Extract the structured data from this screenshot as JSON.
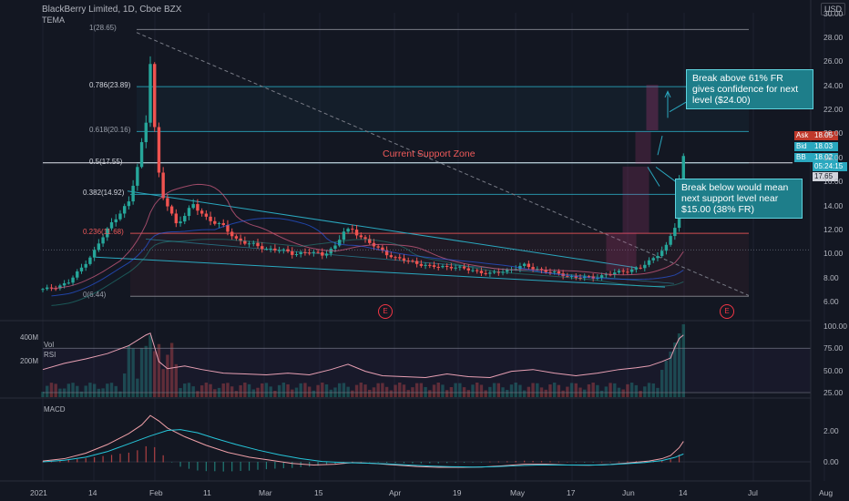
{
  "header": {
    "title": "BlackBerry Limited, 1D, Cboe BZX",
    "indicator": "TEMA",
    "currency": "USD"
  },
  "colors": {
    "background": "#131722",
    "up": "#26a69a",
    "down": "#ef5350",
    "fib_blue": "#2aa8bf",
    "fib_red": "#f05a5a",
    "callout_bg": "#1e7e8a"
  },
  "annotations": {
    "callout_up": "Break above 61% FR gives confidence for next level ($24.00)",
    "callout_down": "Break below would mean next support level near $15.00 (38% FR)",
    "support_zone": "Current Support Zone",
    "earnings_marker": "E"
  },
  "quotes": {
    "ask_label": "Ask",
    "ask": "18.05",
    "bid_label": "Bid",
    "bid": "18.03",
    "bb_label": "BB",
    "last": "18.02",
    "countdown": "05:24:15",
    "other": "17.65"
  },
  "panes": {
    "vol_label": "Vol",
    "rsi_label": "RSI",
    "macd_label": "MACD"
  },
  "chart_data": {
    "type": "candlestick",
    "title": "BlackBerry Limited, 1D, Cboe BZX",
    "x_ticks": [
      "2021",
      "14",
      "Feb",
      "11",
      "Mar",
      "15",
      "Apr",
      "19",
      "May",
      "17",
      "Jun",
      "14",
      "Jul",
      "Aug"
    ],
    "price_axis": {
      "ticks": [
        "30.00",
        "28.00",
        "26.00",
        "24.00",
        "22.00",
        "20.00",
        "18.00",
        "16.00",
        "14.00",
        "12.00",
        "10.00",
        "8.00",
        "6.00"
      ],
      "range": [
        5,
        30
      ]
    },
    "fib_levels": [
      {
        "label": "1(28.65)",
        "value": 28.65
      },
      {
        "label": "0.786(23.89)",
        "value": 23.89
      },
      {
        "label": "0.618(20.16)",
        "value": 20.16
      },
      {
        "label": "0.5(17.55)",
        "value": 17.55
      },
      {
        "label": "0.382(14.92)",
        "value": 14.92
      },
      {
        "label": "0.236(11.68)",
        "value": 11.68
      },
      {
        "label": "0(6.44)",
        "value": 6.44
      }
    ],
    "price_series": [
      [
        0,
        7.0
      ],
      [
        3,
        7.2
      ],
      [
        6,
        7.6
      ],
      [
        9,
        8.8
      ],
      [
        12,
        10.2
      ],
      [
        15,
        12.0
      ],
      [
        18,
        13.5
      ],
      [
        20,
        14.2
      ],
      [
        22,
        17.2
      ],
      [
        24,
        21.0
      ],
      [
        25,
        26.2
      ],
      [
        26,
        20.5
      ],
      [
        27,
        16.5
      ],
      [
        28,
        14.6
      ],
      [
        29,
        14.0
      ],
      [
        31,
        12.5
      ],
      [
        33,
        13.2
      ],
      [
        35,
        14.0
      ],
      [
        38,
        13.0
      ],
      [
        42,
        12.2
      ],
      [
        45,
        11.2
      ],
      [
        48,
        10.8
      ],
      [
        52,
        10.4
      ],
      [
        55,
        10.3
      ],
      [
        58,
        10.0
      ],
      [
        62,
        10.1
      ],
      [
        65,
        9.9
      ],
      [
        68,
        10.6
      ],
      [
        70,
        11.8
      ],
      [
        72,
        12.0
      ],
      [
        75,
        11.1
      ],
      [
        78,
        10.4
      ],
      [
        82,
        9.6
      ],
      [
        86,
        9.3
      ],
      [
        90,
        8.9
      ],
      [
        95,
        8.9
      ],
      [
        100,
        8.6
      ],
      [
        104,
        8.3
      ],
      [
        108,
        8.6
      ],
      [
        112,
        9.0
      ],
      [
        116,
        8.6
      ],
      [
        120,
        8.3
      ],
      [
        124,
        8.0
      ],
      [
        128,
        8.0
      ],
      [
        132,
        8.3
      ],
      [
        136,
        8.6
      ],
      [
        139,
        8.8
      ],
      [
        142,
        9.6
      ],
      [
        144,
        10.3
      ],
      [
        145,
        10.6
      ],
      [
        147,
        12.2
      ],
      [
        148,
        16.0
      ],
      [
        149,
        18.0
      ]
    ],
    "volume_pane": {
      "label": "Vol",
      "ticks": [
        "400M",
        "200M"
      ]
    },
    "rsi": {
      "label": "RSI",
      "ticks": [
        "100.00",
        "75.00",
        "50.00",
        "25.00"
      ],
      "range": [
        25,
        100
      ],
      "series": [
        [
          0,
          51
        ],
        [
          5,
          58
        ],
        [
          10,
          63
        ],
        [
          15,
          69
        ],
        [
          20,
          78
        ],
        [
          24,
          90
        ],
        [
          25,
          92
        ],
        [
          27,
          60
        ],
        [
          29,
          52
        ],
        [
          33,
          55
        ],
        [
          37,
          51
        ],
        [
          42,
          47
        ],
        [
          47,
          46
        ],
        [
          52,
          45
        ],
        [
          57,
          47
        ],
        [
          62,
          45
        ],
        [
          67,
          51
        ],
        [
          71,
          57
        ],
        [
          75,
          49
        ],
        [
          79,
          44
        ],
        [
          84,
          43
        ],
        [
          89,
          42
        ],
        [
          94,
          46
        ],
        [
          99,
          43
        ],
        [
          104,
          42
        ],
        [
          109,
          49
        ],
        [
          114,
          51
        ],
        [
          119,
          47
        ],
        [
          124,
          44
        ],
        [
          129,
          47
        ],
        [
          134,
          51
        ],
        [
          138,
          53
        ],
        [
          141,
          55
        ],
        [
          144,
          60
        ],
        [
          146,
          64
        ],
        [
          147,
          76
        ],
        [
          148,
          86
        ],
        [
          149,
          90
        ]
      ]
    },
    "macd": {
      "label": "MACD",
      "ticks": [
        "2.00",
        "0.00"
      ],
      "range": [
        -0.8,
        3.6
      ],
      "macd_series": [
        [
          0,
          0.05
        ],
        [
          5,
          0.2
        ],
        [
          10,
          0.55
        ],
        [
          15,
          1.1
        ],
        [
          20,
          1.8
        ],
        [
          23,
          2.35
        ],
        [
          25,
          2.95
        ],
        [
          27,
          2.6
        ],
        [
          29,
          2.15
        ],
        [
          33,
          1.6
        ],
        [
          38,
          1.05
        ],
        [
          43,
          0.6
        ],
        [
          48,
          0.3
        ],
        [
          53,
          0.1
        ],
        [
          58,
          -0.1
        ],
        [
          63,
          -0.2
        ],
        [
          68,
          -0.15
        ],
        [
          72,
          -0.05
        ],
        [
          77,
          -0.1
        ],
        [
          82,
          -0.2
        ],
        [
          87,
          -0.3
        ],
        [
          92,
          -0.35
        ],
        [
          97,
          -0.35
        ],
        [
          102,
          -0.33
        ],
        [
          107,
          -0.25
        ],
        [
          112,
          -0.15
        ],
        [
          117,
          -0.15
        ],
        [
          122,
          -0.2
        ],
        [
          127,
          -0.22
        ],
        [
          132,
          -0.17
        ],
        [
          137,
          -0.05
        ],
        [
          141,
          0.05
        ],
        [
          144,
          0.2
        ],
        [
          146,
          0.4
        ],
        [
          148,
          0.9
        ],
        [
          149,
          1.3
        ]
      ],
      "signal_series": [
        [
          0,
          0.0
        ],
        [
          5,
          0.1
        ],
        [
          10,
          0.3
        ],
        [
          15,
          0.65
        ],
        [
          20,
          1.15
        ],
        [
          25,
          1.65
        ],
        [
          29,
          2.0
        ],
        [
          32,
          2.05
        ],
        [
          36,
          1.85
        ],
        [
          40,
          1.5
        ],
        [
          45,
          1.1
        ],
        [
          50,
          0.75
        ],
        [
          55,
          0.45
        ],
        [
          60,
          0.2
        ],
        [
          65,
          0.02
        ],
        [
          70,
          -0.05
        ],
        [
          75,
          -0.08
        ],
        [
          80,
          -0.13
        ],
        [
          85,
          -0.2
        ],
        [
          90,
          -0.27
        ],
        [
          95,
          -0.31
        ],
        [
          100,
          -0.33
        ],
        [
          105,
          -0.31
        ],
        [
          110,
          -0.25
        ],
        [
          115,
          -0.2
        ],
        [
          120,
          -0.2
        ],
        [
          125,
          -0.2
        ],
        [
          130,
          -0.2
        ],
        [
          135,
          -0.13
        ],
        [
          140,
          -0.04
        ],
        [
          144,
          0.08
        ],
        [
          147,
          0.28
        ],
        [
          149,
          0.5
        ]
      ]
    }
  }
}
